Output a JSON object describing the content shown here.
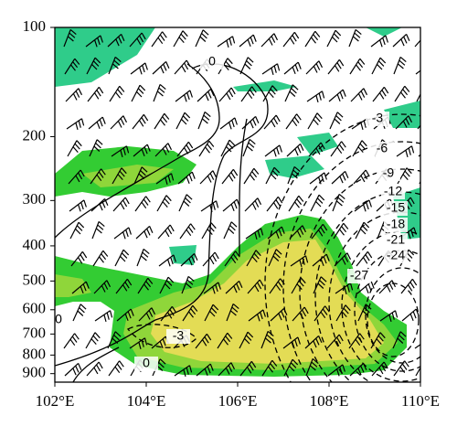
{
  "chart_data": {
    "type": "cross-section",
    "xticks": [
      {
        "value": 102,
        "label": "102°E"
      },
      {
        "value": 104,
        "label": "104°E"
      },
      {
        "value": 106,
        "label": "106°E"
      },
      {
        "value": 108,
        "label": "108°E"
      },
      {
        "value": 110,
        "label": "110°E"
      }
    ],
    "xlim": [
      102,
      110
    ],
    "yticks": [
      100,
      200,
      300,
      400,
      500,
      600,
      700,
      800,
      900
    ],
    "ylim": [
      100,
      950
    ],
    "log_y": true,
    "y_inverted": true,
    "contour_labels": [
      0,
      -3,
      -6,
      -9,
      -12,
      -15,
      -18,
      -21,
      -24,
      -27,
      -3,
      0,
      0
    ]
  }
}
